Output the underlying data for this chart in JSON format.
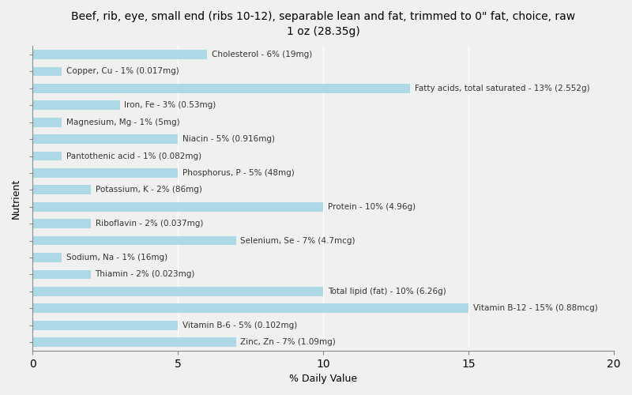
{
  "title": "Beef, rib, eye, small end (ribs 10-12), separable lean and fat, trimmed to 0\" fat, choice, raw\n1 oz (28.35g)",
  "xlabel": "% Daily Value",
  "ylabel": "Nutrient",
  "xlim": [
    0,
    20
  ],
  "bar_color": "#add8e6",
  "background_color": "#f0f0f0",
  "nutrients": [
    {
      "label": "Cholesterol - 6% (19mg)",
      "value": 6
    },
    {
      "label": "Copper, Cu - 1% (0.017mg)",
      "value": 1
    },
    {
      "label": "Fatty acids, total saturated - 13% (2.552g)",
      "value": 13
    },
    {
      "label": "Iron, Fe - 3% (0.53mg)",
      "value": 3
    },
    {
      "label": "Magnesium, Mg - 1% (5mg)",
      "value": 1
    },
    {
      "label": "Niacin - 5% (0.916mg)",
      "value": 5
    },
    {
      "label": "Pantothenic acid - 1% (0.082mg)",
      "value": 1
    },
    {
      "label": "Phosphorus, P - 5% (48mg)",
      "value": 5
    },
    {
      "label": "Potassium, K - 2% (86mg)",
      "value": 2
    },
    {
      "label": "Protein - 10% (4.96g)",
      "value": 10
    },
    {
      "label": "Riboflavin - 2% (0.037mg)",
      "value": 2
    },
    {
      "label": "Selenium, Se - 7% (4.7mcg)",
      "value": 7
    },
    {
      "label": "Sodium, Na - 1% (16mg)",
      "value": 1
    },
    {
      "label": "Thiamin - 2% (0.023mg)",
      "value": 2
    },
    {
      "label": "Total lipid (fat) - 10% (6.26g)",
      "value": 10
    },
    {
      "label": "Vitamin B-12 - 15% (0.88mcg)",
      "value": 15
    },
    {
      "label": "Vitamin B-6 - 5% (0.102mg)",
      "value": 5
    },
    {
      "label": "Zinc, Zn - 7% (1.09mg)",
      "value": 7
    }
  ],
  "title_fontsize": 10,
  "label_fontsize": 7.5,
  "bar_height": 0.55
}
